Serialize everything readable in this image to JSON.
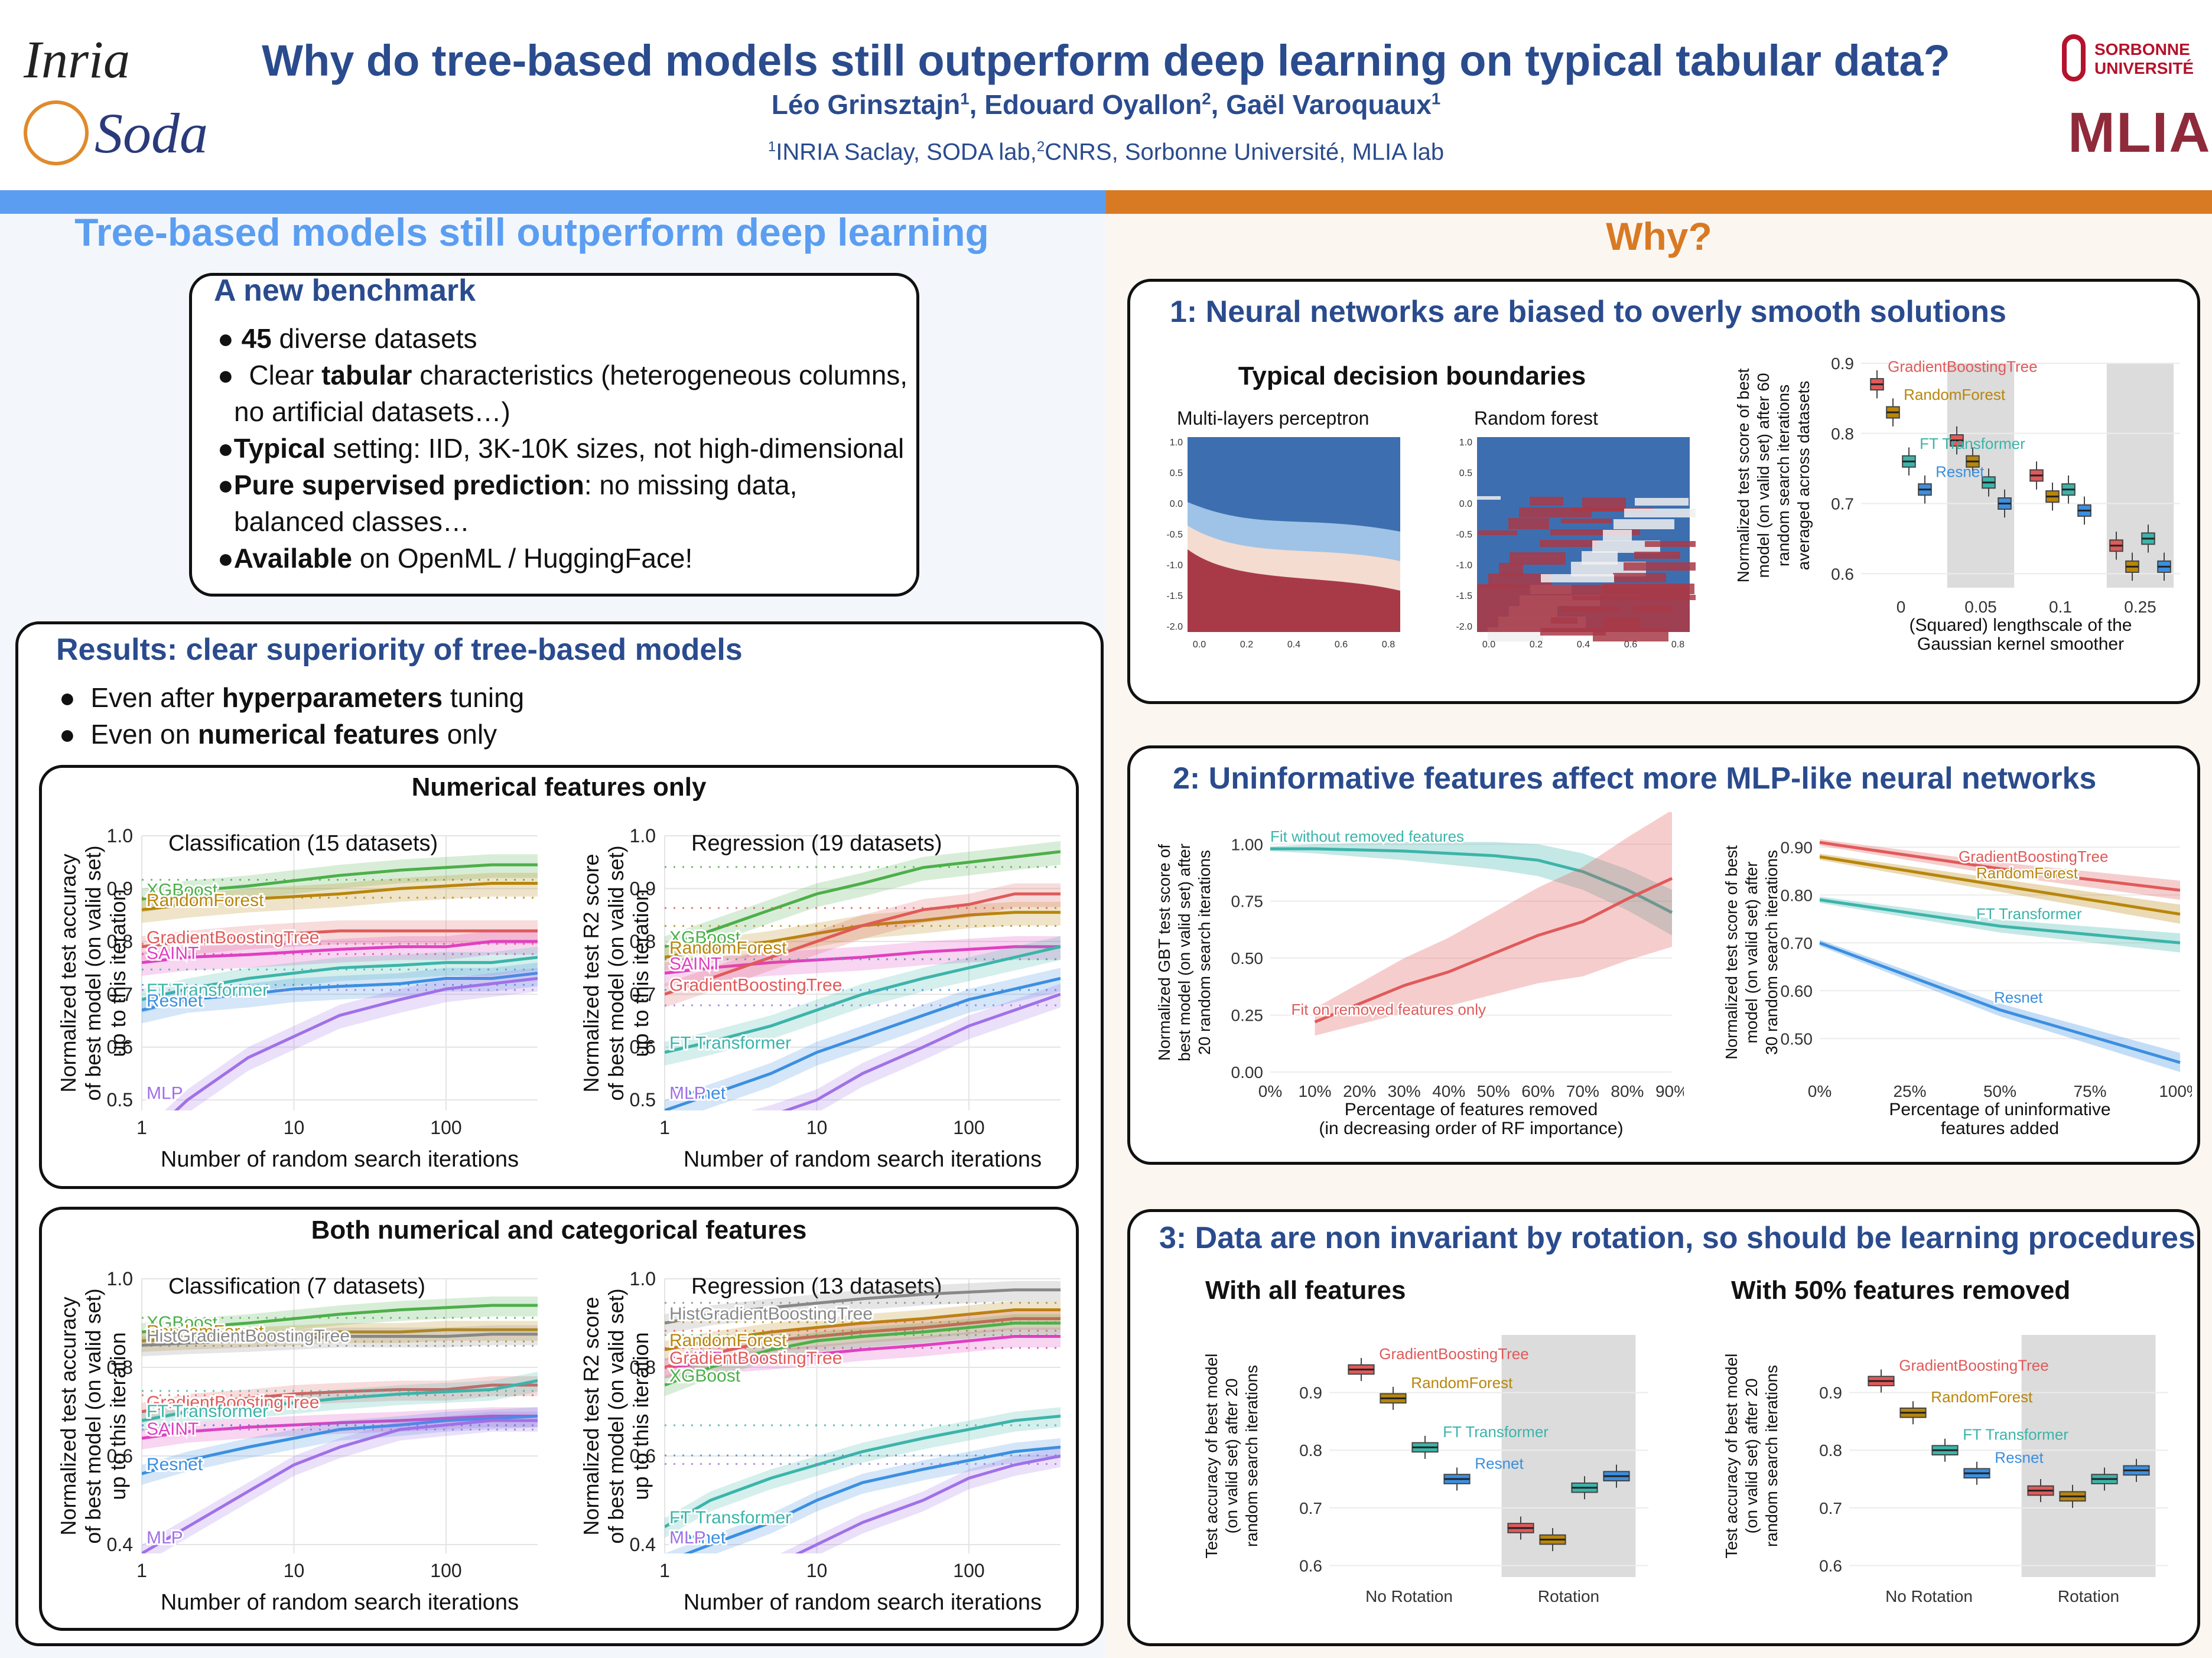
{
  "header": {
    "title": "Why do tree-based models still outperform deep learning on typical tabular data?",
    "authors": [
      {
        "name": "Léo Grinsztajn",
        "sup": "1"
      },
      {
        "name": "Edouard Oyallon",
        "sup": "2"
      },
      {
        "name": "Gaël Varoquaux",
        "sup": "1"
      }
    ],
    "affiliation": {
      "sup1": "1",
      "text1": "INRIA Saclay, SODA lab,",
      "sup2": "2",
      "text2": "CNRS, Sorbonne Université, MLIA lab"
    },
    "logos": {
      "inria": "Inria",
      "soda": "Soda",
      "sorbonne_line1": "SORBONNE",
      "sorbonne_line2": "UNIVERSITÉ",
      "mlia": "MLIA"
    }
  },
  "left": {
    "section_title": "Tree-based models still outperform deep learning",
    "benchmark": {
      "title": "A new benchmark",
      "bullets": [
        {
          "bold": "45",
          "text": " diverse datasets"
        },
        {
          "pre": "Clear ",
          "bold": "tabular",
          "text": " characteristics (heterogeneous columns,",
          "cont": "no artificial datasets…)"
        },
        {
          "bold": "Typical",
          "text": " setting: IID, 3K-10K sizes, not high-dimensional"
        },
        {
          "bold": "Pure supervised prediction",
          "text": ": no missing data,",
          "cont": "balanced classes…"
        },
        {
          "bold": "Available",
          "text": " on OpenML / HuggingFace!"
        }
      ]
    },
    "results": {
      "title": "Results: clear superiority of tree-based models",
      "bullets": [
        {
          "pre": "Even after ",
          "bold": "hyperparameters",
          "text": " tuning"
        },
        {
          "pre": "Even on ",
          "bold": "numerical features",
          "text": " only"
        }
      ],
      "numerical_panel_title": "Numerical features only",
      "both_panel_title": "Both numerical and categorical features"
    }
  },
  "right": {
    "section_title": "Why?",
    "box1": {
      "title": "1: Neural networks are biased to overly smooth solutions",
      "boundaries_title": "Typical decision boundaries",
      "mlp_label": "Multi-layers perceptron",
      "rf_label": "Random forest",
      "map_xticks": [
        "0.0",
        "0.2",
        "0.4",
        "0.6",
        "0.8"
      ],
      "map_yticks": [
        "1.0",
        "0.5",
        "0.0",
        "-0.5",
        "-1.0",
        "-1.5",
        "-2.0"
      ]
    },
    "box2": {
      "title": "2: Uninformative features affect more MLP-like neural networks"
    },
    "box3": {
      "title": "3: Data are non invariant by rotation, so should be learning procedures",
      "left_title": "With all features",
      "right_title": "With 50% features removed"
    }
  },
  "colors": {
    "title_blue": "#2a4b8d",
    "left_accent": "#5b9ef1",
    "right_accent": "#d87a24",
    "XGBoost": "#4daf4a",
    "RandomForest": "#b8860b",
    "GradientBoostingTree": "#e05a5a",
    "SAINT": "#e040c0",
    "FT Transformer": "#3cb4aa",
    "Resnet": "#3b8fe0",
    "MLP": "#a070e8"
  },
  "chart_data": [
    {
      "id": "num-class",
      "type": "line",
      "title": "Classification (15 datasets)",
      "xlabel": "Number of random search iterations",
      "ylabel": [
        "Normalized test accuracy",
        "of best model (on valid set)",
        "up to this iteration"
      ],
      "xscale": "log",
      "xlim": [
        1,
        400
      ],
      "ylim": [
        0.48,
        1.0
      ],
      "xticks": [
        1,
        10,
        100
      ],
      "yticks": [
        0.5,
        0.6,
        0.7,
        0.8,
        0.9,
        1.0
      ],
      "x": [
        1,
        2,
        5,
        10,
        20,
        50,
        100,
        200,
        400
      ],
      "series": [
        {
          "name": "XGBoost",
          "values": [
            0.88,
            0.895,
            0.905,
            0.915,
            0.925,
            0.935,
            0.94,
            0.945,
            0.945
          ]
        },
        {
          "name": "RandomForest",
          "values": [
            0.86,
            0.87,
            0.88,
            0.885,
            0.89,
            0.9,
            0.905,
            0.91,
            0.91
          ]
        },
        {
          "name": "GradientBoostingTree",
          "values": [
            0.79,
            0.8,
            0.81,
            0.815,
            0.82,
            0.82,
            0.82,
            0.82,
            0.82
          ]
        },
        {
          "name": "SAINT",
          "values": [
            0.76,
            0.77,
            0.775,
            0.78,
            0.785,
            0.79,
            0.79,
            0.8,
            0.8
          ]
        },
        {
          "name": "FT Transformer",
          "values": [
            0.69,
            0.71,
            0.73,
            0.74,
            0.75,
            0.755,
            0.76,
            0.76,
            0.77
          ]
        },
        {
          "name": "Resnet",
          "values": [
            0.67,
            0.69,
            0.7,
            0.71,
            0.715,
            0.72,
            0.73,
            0.73,
            0.74
          ]
        },
        {
          "name": "MLP",
          "values": [
            0.42,
            0.5,
            0.58,
            0.62,
            0.66,
            0.69,
            0.71,
            0.72,
            0.73
          ]
        }
      ]
    },
    {
      "id": "num-reg",
      "type": "line",
      "title": "Regression (19 datasets)",
      "xlabel": "Number of random search iterations",
      "ylabel": [
        "Normalized test R2 score",
        "of best model (on valid set)",
        "up to this iteration"
      ],
      "xscale": "log",
      "xlim": [
        1,
        400
      ],
      "ylim": [
        0.48,
        1.0
      ],
      "xticks": [
        1,
        10,
        100
      ],
      "yticks": [
        0.5,
        0.6,
        0.7,
        0.8,
        0.9,
        1.0
      ],
      "x": [
        1,
        2,
        5,
        10,
        20,
        50,
        100,
        200,
        400
      ],
      "series": [
        {
          "name": "XGBoost",
          "values": [
            0.79,
            0.82,
            0.86,
            0.89,
            0.91,
            0.94,
            0.95,
            0.96,
            0.97
          ]
        },
        {
          "name": "RandomForest",
          "values": [
            0.77,
            0.785,
            0.8,
            0.815,
            0.83,
            0.84,
            0.85,
            0.855,
            0.855
          ]
        },
        {
          "name": "SAINT",
          "values": [
            0.74,
            0.75,
            0.76,
            0.765,
            0.77,
            0.78,
            0.785,
            0.79,
            0.79
          ]
        },
        {
          "name": "GradientBoostingTree",
          "values": [
            0.7,
            0.73,
            0.77,
            0.8,
            0.83,
            0.86,
            0.87,
            0.89,
            0.89
          ]
        },
        {
          "name": "FT Transformer",
          "values": [
            0.59,
            0.61,
            0.64,
            0.67,
            0.7,
            0.73,
            0.75,
            0.77,
            0.79
          ]
        },
        {
          "name": "Resnet",
          "values": [
            0.48,
            0.51,
            0.55,
            0.59,
            0.62,
            0.66,
            0.69,
            0.71,
            0.73
          ]
        },
        {
          "name": "MLP",
          "values": [
            0.42,
            0.44,
            0.47,
            0.5,
            0.55,
            0.6,
            0.64,
            0.67,
            0.7
          ]
        }
      ]
    },
    {
      "id": "cat-class",
      "type": "line",
      "title": "Classification (7 datasets)",
      "xlabel": "Number of random search iterations",
      "ylabel": [
        "Normalized test accuracy",
        "of best model (on valid set)",
        "up to this iteration"
      ],
      "xscale": "log",
      "xlim": [
        1,
        400
      ],
      "ylim": [
        0.38,
        1.0
      ],
      "xticks": [
        1,
        10,
        100
      ],
      "yticks": [
        0.4,
        0.6,
        0.8,
        1.0
      ],
      "x": [
        1,
        2,
        5,
        10,
        20,
        50,
        100,
        200,
        400
      ],
      "series": [
        {
          "name": "XGBoost",
          "values": [
            0.88,
            0.89,
            0.9,
            0.91,
            0.92,
            0.93,
            0.935,
            0.94,
            0.94
          ]
        },
        {
          "name": "RandomForest",
          "values": [
            0.86,
            0.865,
            0.87,
            0.875,
            0.88,
            0.88,
            0.885,
            0.885,
            0.885
          ]
        },
        {
          "name": "HistGradientBoostingTree",
          "values": [
            0.85,
            0.855,
            0.86,
            0.865,
            0.87,
            0.87,
            0.87,
            0.875,
            0.875
          ]
        },
        {
          "name": "GradientBoostingTree",
          "values": [
            0.7,
            0.72,
            0.73,
            0.74,
            0.745,
            0.75,
            0.75,
            0.76,
            0.76
          ]
        },
        {
          "name": "FT Transformer",
          "values": [
            0.68,
            0.7,
            0.71,
            0.72,
            0.73,
            0.74,
            0.745,
            0.75,
            0.77
          ]
        },
        {
          "name": "SAINT",
          "values": [
            0.64,
            0.655,
            0.665,
            0.67,
            0.675,
            0.68,
            0.685,
            0.69,
            0.69
          ]
        },
        {
          "name": "Resnet",
          "values": [
            0.56,
            0.59,
            0.62,
            0.64,
            0.66,
            0.67,
            0.68,
            0.685,
            0.69
          ]
        },
        {
          "name": "MLP",
          "values": [
            0.38,
            0.44,
            0.52,
            0.58,
            0.62,
            0.66,
            0.67,
            0.68,
            0.68
          ]
        }
      ]
    },
    {
      "id": "cat-reg",
      "type": "line",
      "title": "Regression (13 datasets)",
      "xlabel": "Number of random search iterations",
      "ylabel": [
        "Normalized test R2 score",
        "of best model (on valid set)",
        "up to this iteration"
      ],
      "xscale": "log",
      "xlim": [
        1,
        400
      ],
      "ylim": [
        0.38,
        1.0
      ],
      "xticks": [
        1,
        10,
        100
      ],
      "yticks": [
        0.4,
        0.6,
        0.8,
        1.0
      ],
      "x": [
        1,
        2,
        5,
        10,
        20,
        50,
        100,
        200,
        400
      ],
      "series": [
        {
          "name": "HistGradientBoostingTree",
          "values": [
            0.9,
            0.92,
            0.935,
            0.945,
            0.955,
            0.965,
            0.97,
            0.975,
            0.975
          ]
        },
        {
          "name": "RandomForest",
          "values": [
            0.84,
            0.86,
            0.88,
            0.89,
            0.9,
            0.91,
            0.92,
            0.93,
            0.93
          ]
        },
        {
          "name": "SAINT",
          "values": [
            0.8,
            0.81,
            0.82,
            0.83,
            0.84,
            0.85,
            0.86,
            0.87,
            0.87
          ]
        },
        {
          "name": "GradientBoostingTree",
          "values": [
            0.8,
            0.83,
            0.86,
            0.87,
            0.88,
            0.89,
            0.9,
            0.91,
            0.91
          ]
        },
        {
          "name": "XGBoost",
          "values": [
            0.76,
            0.8,
            0.84,
            0.86,
            0.87,
            0.88,
            0.89,
            0.9,
            0.9
          ]
        },
        {
          "name": "FT Transformer",
          "values": [
            0.44,
            0.5,
            0.55,
            0.58,
            0.61,
            0.64,
            0.66,
            0.68,
            0.69
          ]
        },
        {
          "name": "Resnet",
          "values": [
            0.36,
            0.4,
            0.45,
            0.5,
            0.54,
            0.57,
            0.59,
            0.61,
            0.62
          ]
        },
        {
          "name": "MLP",
          "values": [
            0.3,
            0.32,
            0.35,
            0.4,
            0.45,
            0.5,
            0.55,
            0.58,
            0.6
          ]
        }
      ]
    },
    {
      "id": "smooth-box",
      "type": "box",
      "xlabel": [
        "(Squared) lengthscale of the",
        "Gaussian kernel smoother"
      ],
      "ylabel": [
        "Normalized test score of best",
        "model (on valid set) after 60",
        "random search iterations",
        "averaged across datasets"
      ],
      "categories": [
        "0",
        "0.05",
        "0.1",
        "0.25"
      ],
      "shaded": [
        "0.05",
        "0.25"
      ],
      "ylim": [
        0.58,
        0.9
      ],
      "yticks": [
        0.6,
        0.7,
        0.8,
        0.9
      ],
      "series": [
        {
          "name": "GradientBoostingTree",
          "medians": [
            0.87,
            0.79,
            0.74,
            0.64
          ]
        },
        {
          "name": "RandomForest",
          "medians": [
            0.83,
            0.76,
            0.71,
            0.61
          ]
        },
        {
          "name": "FT Transformer",
          "medians": [
            0.76,
            0.73,
            0.72,
            0.65
          ]
        },
        {
          "name": "Resnet",
          "medians": [
            0.72,
            0.7,
            0.69,
            0.61
          ]
        }
      ]
    },
    {
      "id": "removed-features",
      "type": "line",
      "xlabel": [
        "Percentage of features removed",
        "(in decreasing order of RF importance)"
      ],
      "ylabel": [
        "Normalized GBT test score of",
        "best model (on valid set) after",
        "20 random search iterations"
      ],
      "x": [
        0,
        10,
        20,
        30,
        40,
        50,
        60,
        70,
        80,
        90
      ],
      "xticks": [
        "0%",
        "10%",
        "20%",
        "30%",
        "40%",
        "50%",
        "60%",
        "70%",
        "80%",
        "90%"
      ],
      "ylim": [
        0,
        1.05
      ],
      "yticks": [
        0.0,
        0.25,
        0.5,
        0.75,
        1.0
      ],
      "series": [
        {
          "name": "Fit without removed features",
          "values": [
            0.98,
            0.98,
            0.975,
            0.97,
            0.96,
            0.95,
            0.93,
            0.88,
            0.8,
            0.7
          ]
        },
        {
          "name": "Fit on removed features only",
          "values": [
            null,
            0.22,
            0.3,
            0.38,
            0.44,
            0.52,
            0.6,
            0.66,
            0.76,
            0.85
          ]
        }
      ]
    },
    {
      "id": "uninformative",
      "type": "line",
      "xlabel": [
        "Percentage of uninformative",
        "features added"
      ],
      "ylabel": [
        "Normalized test score of best",
        "model (on valid set) after",
        "30 random search iterations"
      ],
      "x": [
        0,
        50,
        100
      ],
      "xticks": [
        "0%",
        "25%",
        "50%",
        "75%",
        "100%"
      ],
      "ylim": [
        0.43,
        0.93
      ],
      "yticks": [
        0.5,
        0.6,
        0.7,
        0.8,
        0.9
      ],
      "series": [
        {
          "name": "GradientBoostingTree",
          "values": [
            0.91,
            0.855,
            0.81
          ]
        },
        {
          "name": "RandomForest",
          "values": [
            0.88,
            0.82,
            0.76
          ]
        },
        {
          "name": "FT Transformer",
          "values": [
            0.79,
            0.735,
            0.7
          ]
        },
        {
          "name": "Resnet",
          "values": [
            0.7,
            0.56,
            0.45
          ]
        }
      ]
    },
    {
      "id": "rot-all",
      "type": "box",
      "ylabel": [
        "Test accuracy of best model",
        "(on valid set) after 20",
        "random search iterations"
      ],
      "categories": [
        "No Rotation",
        "Rotation"
      ],
      "shaded": [
        "Rotation"
      ],
      "ylim": [
        0.58,
        1.0
      ],
      "yticks": [
        0.6,
        0.7,
        0.8,
        0.9
      ],
      "series": [
        {
          "name": "GradientBoostingTree",
          "medians": [
            0.94,
            0.665
          ]
        },
        {
          "name": "RandomForest",
          "medians": [
            0.89,
            0.645
          ]
        },
        {
          "name": "FT Transformer",
          "medians": [
            0.805,
            0.735
          ]
        },
        {
          "name": "Resnet",
          "medians": [
            0.75,
            0.755
          ]
        }
      ]
    },
    {
      "id": "rot-half",
      "type": "box",
      "ylabel": [
        "Test accuracy of best model",
        "(on valid set) after 20",
        "random search iterations"
      ],
      "categories": [
        "No Rotation",
        "Rotation"
      ],
      "shaded": [
        "Rotation"
      ],
      "ylim": [
        0.58,
        1.0
      ],
      "yticks": [
        0.6,
        0.7,
        0.8,
        0.9
      ],
      "series": [
        {
          "name": "GradientBoostingTree",
          "medians": [
            0.92,
            0.73
          ]
        },
        {
          "name": "RandomForest",
          "medians": [
            0.865,
            0.72
          ]
        },
        {
          "name": "FT Transformer",
          "medians": [
            0.8,
            0.75
          ]
        },
        {
          "name": "Resnet",
          "medians": [
            0.76,
            0.765
          ]
        }
      ]
    }
  ]
}
